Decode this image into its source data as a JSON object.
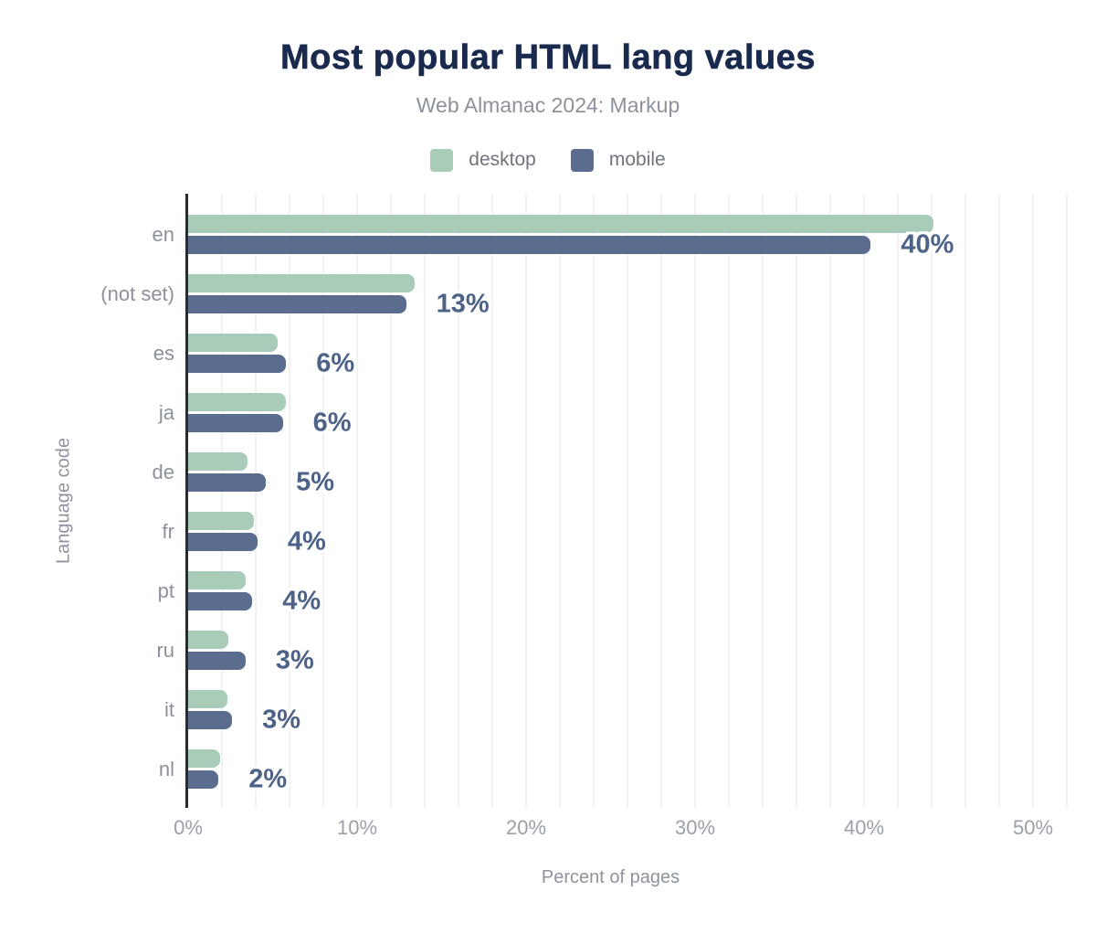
{
  "chart_data": {
    "type": "bar",
    "orientation": "horizontal",
    "title": "Most popular HTML lang values",
    "subtitle": "Web Almanac 2024: Markup",
    "xlabel": "Percent of pages",
    "ylabel": "Language code",
    "categories": [
      "en",
      "(not set)",
      "es",
      "ja",
      "de",
      "fr",
      "pt",
      "ru",
      "it",
      "nl"
    ],
    "series": [
      {
        "name": "desktop",
        "color": "#a8ccb8",
        "values": [
          44.1,
          13.4,
          5.3,
          5.8,
          3.5,
          3.9,
          3.4,
          2.4,
          2.3,
          1.9
        ]
      },
      {
        "name": "mobile",
        "color": "#5b6d8f",
        "values": [
          40.4,
          12.9,
          5.8,
          5.6,
          4.6,
          4.1,
          3.8,
          3.4,
          2.6,
          1.8
        ]
      }
    ],
    "value_labels": [
      "40%",
      "13%",
      "6%",
      "6%",
      "5%",
      "4%",
      "4%",
      "3%",
      "3%",
      "2%"
    ],
    "value_labels_series": "mobile",
    "x_ticks": [
      "0%",
      "10%",
      "20%",
      "30%",
      "40%",
      "50%"
    ],
    "xlim": [
      0,
      52
    ],
    "grid": "vertical",
    "grid_step": 2,
    "legend_position": "top",
    "colors": {
      "title": "#1a2a4e",
      "subtitle": "#8c929c",
      "axis_label": "#8d939d",
      "tick_label": "#9aa0a9",
      "category_label": "#8b919b",
      "value_label": "#4d6287",
      "legend_label": "#6f747c",
      "gridline": "#f2f1f0",
      "axis_line": "#2b2b2b",
      "background": "#ffffff"
    }
  }
}
